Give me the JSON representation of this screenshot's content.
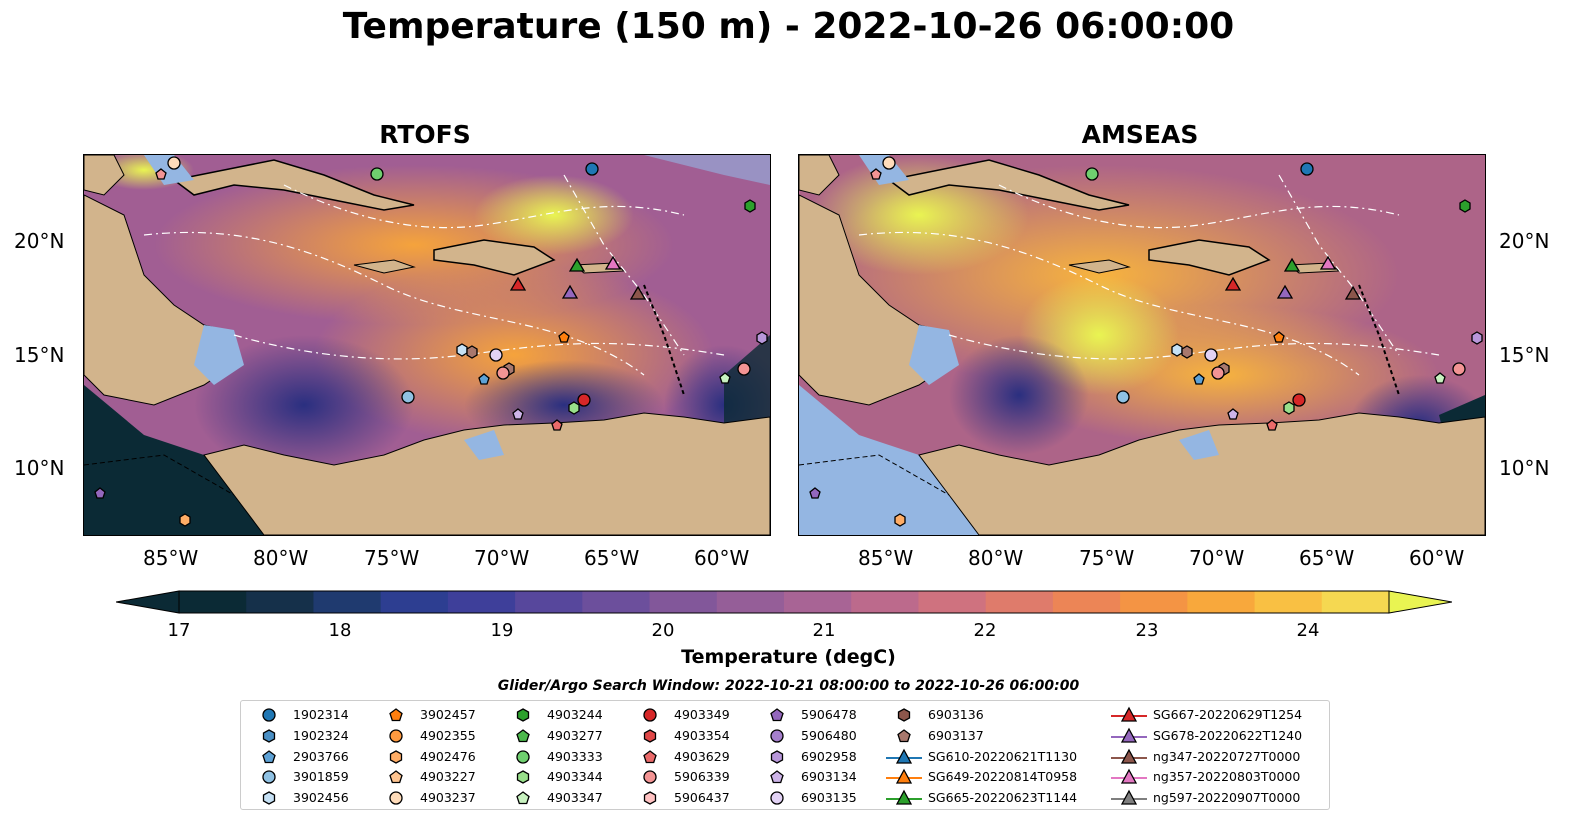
{
  "figure": {
    "title": "Temperature (150 m) - 2022-10-26 06:00:00",
    "panels": [
      {
        "title": "RTOFS"
      },
      {
        "title": "AMSEAS"
      }
    ],
    "lat_labels": [
      "20°N",
      "15°N",
      "10°N"
    ],
    "lon_labels": [
      "85°W",
      "80°W",
      "75°W",
      "70°W",
      "65°W",
      "60°W"
    ],
    "colorbar": {
      "label": "Temperature (degC)",
      "ticks": [
        "17",
        "18",
        "19",
        "20",
        "21",
        "22",
        "23",
        "24"
      ],
      "colors": [
        "#0b2a35",
        "#15304a",
        "#1f3a6f",
        "#2d3e91",
        "#3e3f9a",
        "#57479c",
        "#6c4f9c",
        "#82579a",
        "#955e98",
        "#a86495",
        "#bc6a8c",
        "#cf727f",
        "#df7b6b",
        "#ec8556",
        "#f49444",
        "#f8a83c",
        "#f9c043",
        "#f5d851"
      ],
      "under_color": "#0b2a35",
      "over_color": "#e9f452"
    },
    "search_window": "Glider/Argo Search Window: 2022-10-21 08:00:00 to 2022-10-26 06:00:00",
    "legend": [
      {
        "label": "1902314",
        "marker": "circle",
        "color": "#1f77b4"
      },
      {
        "label": "1902324",
        "marker": "hexagon",
        "color": "#4a8fc4"
      },
      {
        "label": "2903766",
        "marker": "pentagon",
        "color": "#5ea2d6"
      },
      {
        "label": "3901859",
        "marker": "circle",
        "color": "#8fc1e3"
      },
      {
        "label": "3902456",
        "marker": "hexagon",
        "color": "#c6e1f5"
      },
      {
        "label": "3902457",
        "marker": "pentagon",
        "color": "#ff7f0e"
      },
      {
        "label": "4902355",
        "marker": "circle",
        "color": "#ff9a40"
      },
      {
        "label": "4902476",
        "marker": "hexagon",
        "color": "#ffad66"
      },
      {
        "label": "4903227",
        "marker": "pentagon",
        "color": "#ffc490"
      },
      {
        "label": "4903237",
        "marker": "circle",
        "color": "#ffdcba"
      },
      {
        "label": "4903244",
        "marker": "hexagon",
        "color": "#2ca02c"
      },
      {
        "label": "4903277",
        "marker": "pentagon",
        "color": "#4cb84c"
      },
      {
        "label": "4903333",
        "marker": "circle",
        "color": "#6fcf6f"
      },
      {
        "label": "4903344",
        "marker": "hexagon",
        "color": "#98df8a"
      },
      {
        "label": "4903347",
        "marker": "pentagon",
        "color": "#c8f2c0"
      },
      {
        "label": "4903349",
        "marker": "circle",
        "color": "#d62728"
      },
      {
        "label": "4903354",
        "marker": "hexagon",
        "color": "#e04848"
      },
      {
        "label": "4903629",
        "marker": "pentagon",
        "color": "#ea6a6a"
      },
      {
        "label": "5906339",
        "marker": "circle",
        "color": "#f39494"
      },
      {
        "label": "5906437",
        "marker": "hexagon",
        "color": "#ffc2c2"
      },
      {
        "label": "5906478",
        "marker": "pentagon",
        "color": "#9467bd"
      },
      {
        "label": "5906480",
        "marker": "circle",
        "color": "#a57fcc"
      },
      {
        "label": "6902958",
        "marker": "hexagon",
        "color": "#b897da"
      },
      {
        "label": "6903134",
        "marker": "pentagon",
        "color": "#cdb4e8"
      },
      {
        "label": "6903135",
        "marker": "circle",
        "color": "#e2d2f5"
      },
      {
        "label": "6903136",
        "marker": "hexagon",
        "color": "#8c564b"
      },
      {
        "label": "6903137",
        "marker": "pentagon",
        "color": "#a8786d"
      },
      {
        "label": "SG610-20220621T1130",
        "marker": "triangle-line",
        "color": "#1f77b4"
      },
      {
        "label": "SG649-20220814T0958",
        "marker": "triangle-line",
        "color": "#ff7f0e"
      },
      {
        "label": "SG665-20220623T1144",
        "marker": "triangle-line",
        "color": "#2ca02c"
      },
      {
        "label": "SG667-20220629T1254",
        "marker": "triangle-line",
        "color": "#d62728"
      },
      {
        "label": "SG678-20220622T1240",
        "marker": "triangle-line",
        "color": "#9467bd"
      },
      {
        "label": "ng347-20220727T0000",
        "marker": "triangle-line",
        "color": "#8c564b"
      },
      {
        "label": "ng357-20220803T0000",
        "marker": "triangle-line",
        "color": "#e377c2"
      },
      {
        "label": "ng597-20220907T0000",
        "marker": "triangle-line",
        "color": "#7f7f7f"
      }
    ],
    "map_colors": {
      "land": "#d2b48c",
      "shelf": "#94b6e2",
      "coast": "#000000"
    }
  }
}
